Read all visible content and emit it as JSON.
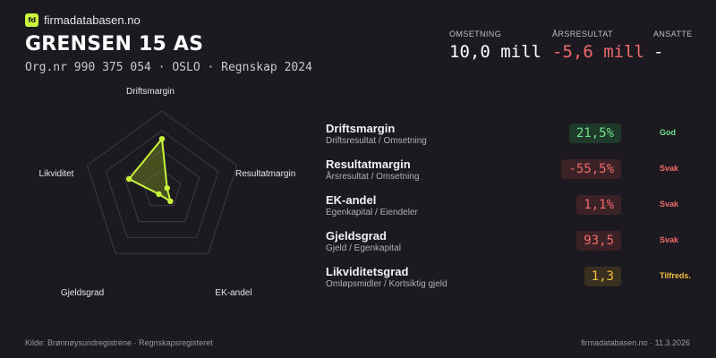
{
  "brand": {
    "logo_text": "fd",
    "name": "firmadatabasen.no"
  },
  "company": {
    "name": "GRENSEN 15 AS",
    "subline": "Org.nr 990 375 054  ·  OSLO  ·  Regnskap 2024"
  },
  "kpis": [
    {
      "label": "OMSETNING",
      "value": "10,0 mill"
    },
    {
      "label": "ÅRSRESULTAT",
      "value": "-5,6 mill"
    },
    {
      "label": "ANSATTE",
      "value": "-"
    }
  ],
  "chart_data": {
    "type": "radar",
    "axes": [
      "Driftsmargin",
      "Resultatmargin",
      "EK-andel",
      "Gjeldsgrad",
      "Likviditet"
    ],
    "values": [
      0.62,
      0.0,
      0.12,
      0.0,
      0.4
    ],
    "rings": 4,
    "colors": {
      "line": "#c8f53b",
      "fill": "#6b7a1f",
      "grid": "#3e3a45"
    }
  },
  "metrics": [
    {
      "name": "Driftsmargin",
      "sub": "Driftsresultat / Omsetning",
      "value": "21,5%",
      "tag": "God",
      "status": "good"
    },
    {
      "name": "Resultatmargin",
      "sub": "Årsresultat / Omsetning",
      "value": "-55,5%",
      "tag": "Svak",
      "status": "weak"
    },
    {
      "name": "EK-andel",
      "sub": "Egenkapital / Eiendeler",
      "value": "1,1%",
      "tag": "Svak",
      "status": "weak"
    },
    {
      "name": "Gjeldsgrad",
      "sub": "Gjeld / Egenkapital",
      "value": "93,5",
      "tag": "Svak",
      "status": "weak"
    },
    {
      "name": "Likviditetsgrad",
      "sub": "Omløpsmidler / Kortsiktig gjeld",
      "value": "1,3",
      "tag": "Tilfreds.",
      "status": "ok"
    }
  ],
  "footer": {
    "source": "Kilde: Brønnøysundregistrene · Regnskapsregisteret",
    "site_date": "firmadatabasen.no · 11.3.2026"
  }
}
